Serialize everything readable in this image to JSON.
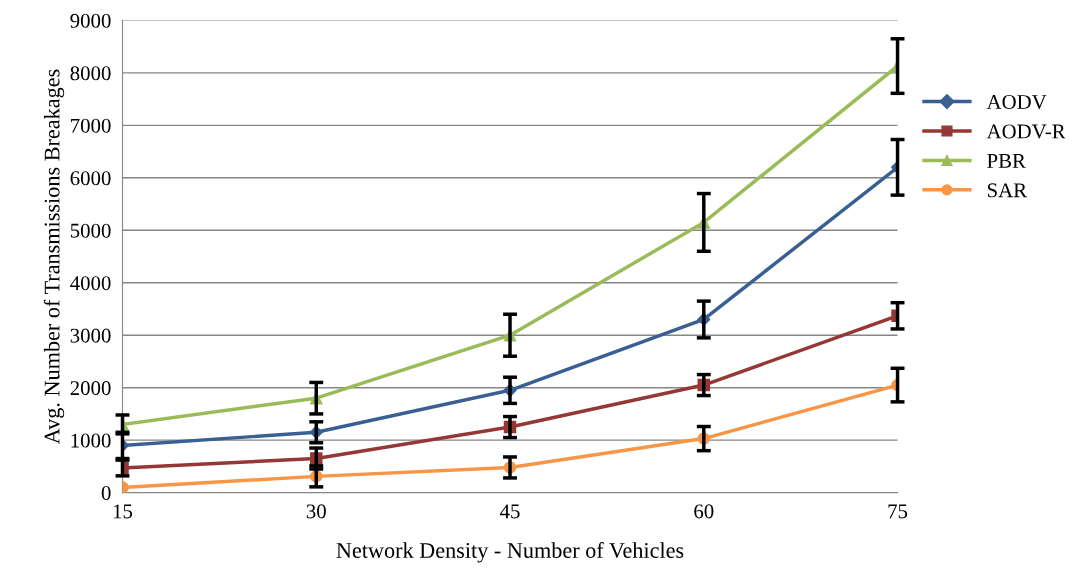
{
  "chart_data": {
    "type": "line",
    "xlabel": "Network Density - Number of Vehicles",
    "ylabel": "Avg. Number of Transmissions Breakages",
    "x": [
      15,
      30,
      45,
      60,
      75
    ],
    "xlim": [
      15,
      75
    ],
    "xticks": [
      15,
      30,
      45,
      60,
      75
    ],
    "ylim": [
      0,
      9000
    ],
    "yticks": [
      0,
      1000,
      2000,
      3000,
      4000,
      5000,
      6000,
      7000,
      8000,
      9000
    ],
    "grid": "y",
    "legend": "right",
    "series": [
      {
        "name": "AODV",
        "color": "#3a5f93",
        "marker": "diamond",
        "values": [
          900,
          1150,
          1950,
          3300,
          6200
        ],
        "errors": [
          250,
          200,
          250,
          350,
          530
        ]
      },
      {
        "name": "AODV-R",
        "color": "#953735",
        "marker": "square",
        "values": [
          470,
          650,
          1250,
          2050,
          3370
        ],
        "errors": [
          150,
          200,
          200,
          200,
          250
        ]
      },
      {
        "name": "PBR",
        "color": "#9bbb59",
        "marker": "triangle",
        "values": [
          1300,
          1800,
          3000,
          5150,
          8130
        ],
        "errors": [
          180,
          300,
          400,
          550,
          520
        ]
      },
      {
        "name": "SAR",
        "color": "#f79646",
        "marker": "circle",
        "values": [
          100,
          310,
          480,
          1030,
          2050
        ],
        "errors": [
          null,
          200,
          200,
          230,
          320
        ]
      }
    ]
  }
}
